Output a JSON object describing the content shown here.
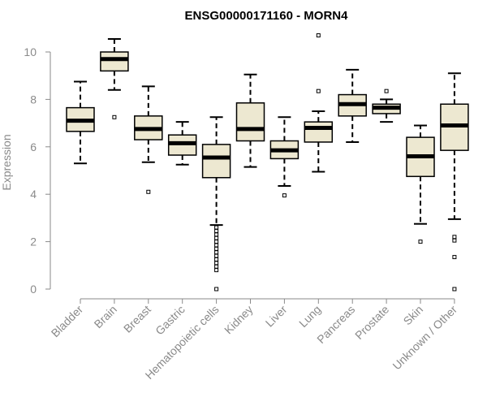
{
  "chart_data": {
    "type": "box",
    "title": "ENSG00000171160 - MORN4",
    "xlabel": "",
    "ylabel": "Expression",
    "ylim": [
      0,
      10.8
    ],
    "yticks": [
      0,
      2,
      4,
      6,
      8,
      10
    ],
    "grid": false,
    "legend": "none",
    "box_fill": "#ede8d1",
    "box_stroke": "#000000",
    "axis_color": "#8a8a8a",
    "categories": [
      "Bladder",
      "Brain",
      "Breast",
      "Gastric",
      "Hematopoietic cells",
      "Kidney",
      "Liver",
      "Lung",
      "Pancreas",
      "Prostate",
      "Skin",
      "Unknown / Other"
    ],
    "boxes": [
      {
        "category": "Bladder",
        "whisker_low": 5.3,
        "q1": 6.65,
        "median": 7.1,
        "q3": 7.65,
        "whisker_high": 8.75,
        "outliers": []
      },
      {
        "category": "Brain",
        "whisker_low": 8.4,
        "q1": 9.2,
        "median": 9.7,
        "q3": 10.0,
        "whisker_high": 10.55,
        "outliers": [
          7.25
        ]
      },
      {
        "category": "Breast",
        "whisker_low": 5.35,
        "q1": 6.3,
        "median": 6.75,
        "q3": 7.3,
        "whisker_high": 8.55,
        "outliers": [
          4.1
        ]
      },
      {
        "category": "Gastric",
        "whisker_low": 5.25,
        "q1": 5.65,
        "median": 6.15,
        "q3": 6.5,
        "whisker_high": 7.05,
        "outliers": []
      },
      {
        "category": "Hematopoietic cells",
        "whisker_low": 2.7,
        "q1": 4.7,
        "median": 5.55,
        "q3": 6.1,
        "whisker_high": 7.25,
        "outliers": [
          2.6,
          2.45,
          2.3,
          2.15,
          2.0,
          1.85,
          1.7,
          1.55,
          1.4,
          1.25,
          1.1,
          0.95,
          0.8,
          0.0
        ]
      },
      {
        "category": "Kidney",
        "whisker_low": 5.15,
        "q1": 6.25,
        "median": 6.75,
        "q3": 7.85,
        "whisker_high": 9.05,
        "outliers": []
      },
      {
        "category": "Liver",
        "whisker_low": 4.35,
        "q1": 5.5,
        "median": 5.85,
        "q3": 6.25,
        "whisker_high": 7.25,
        "outliers": [
          3.95
        ]
      },
      {
        "category": "Lung",
        "whisker_low": 4.95,
        "q1": 6.2,
        "median": 6.8,
        "q3": 7.05,
        "whisker_high": 7.5,
        "outliers": [
          8.35,
          10.7
        ]
      },
      {
        "category": "Pancreas",
        "whisker_low": 6.2,
        "q1": 7.3,
        "median": 7.8,
        "q3": 8.2,
        "whisker_high": 9.25,
        "outliers": []
      },
      {
        "category": "Prostate",
        "whisker_low": 7.05,
        "q1": 7.4,
        "median": 7.65,
        "q3": 7.8,
        "whisker_high": 8.0,
        "outliers": [
          8.35
        ]
      },
      {
        "category": "Skin",
        "whisker_low": 2.75,
        "q1": 4.75,
        "median": 5.6,
        "q3": 6.4,
        "whisker_high": 6.9,
        "outliers": [
          2.0
        ]
      },
      {
        "category": "Unknown / Other",
        "whisker_low": 2.95,
        "q1": 5.85,
        "median": 6.9,
        "q3": 7.8,
        "whisker_high": 9.1,
        "outliers": [
          2.2,
          2.05,
          1.35,
          0.0
        ]
      }
    ]
  }
}
